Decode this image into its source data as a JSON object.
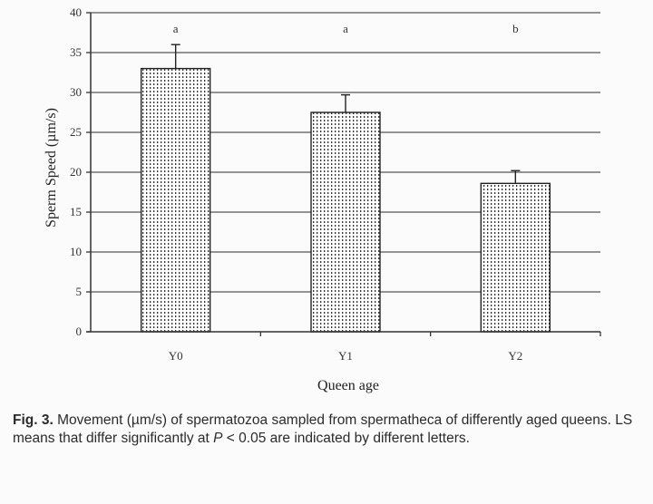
{
  "chart_data": {
    "type": "bar",
    "categories": [
      "Y0",
      "Y1",
      "Y2"
    ],
    "values": [
      33,
      27.5,
      18.6
    ],
    "errors": [
      3.0,
      2.2,
      1.6
    ],
    "significance_letters": [
      "a",
      "a",
      "b"
    ],
    "ylabel": "Sperm Speed (µm/s)",
    "xlabel": "Queen age",
    "ylim": [
      0,
      40
    ],
    "yticks": [
      "0",
      "5",
      "10",
      "15",
      "20",
      "25",
      "30",
      "35",
      "40"
    ],
    "grid": true,
    "legend": "none",
    "colors": {
      "bar_fill": "#ffffff",
      "bar_dots": "#333333",
      "axis": "#333333",
      "grid": "#555555"
    }
  },
  "caption": {
    "fig_label": "Fig. 3.",
    "text_part1": " Movement (µm/s) of spermatozoa sampled from spermatheca of differently aged queens. LS means that differ significantly at ",
    "p_symbol": "P",
    "text_part2": " < 0.05 are indicated by different letters."
  }
}
